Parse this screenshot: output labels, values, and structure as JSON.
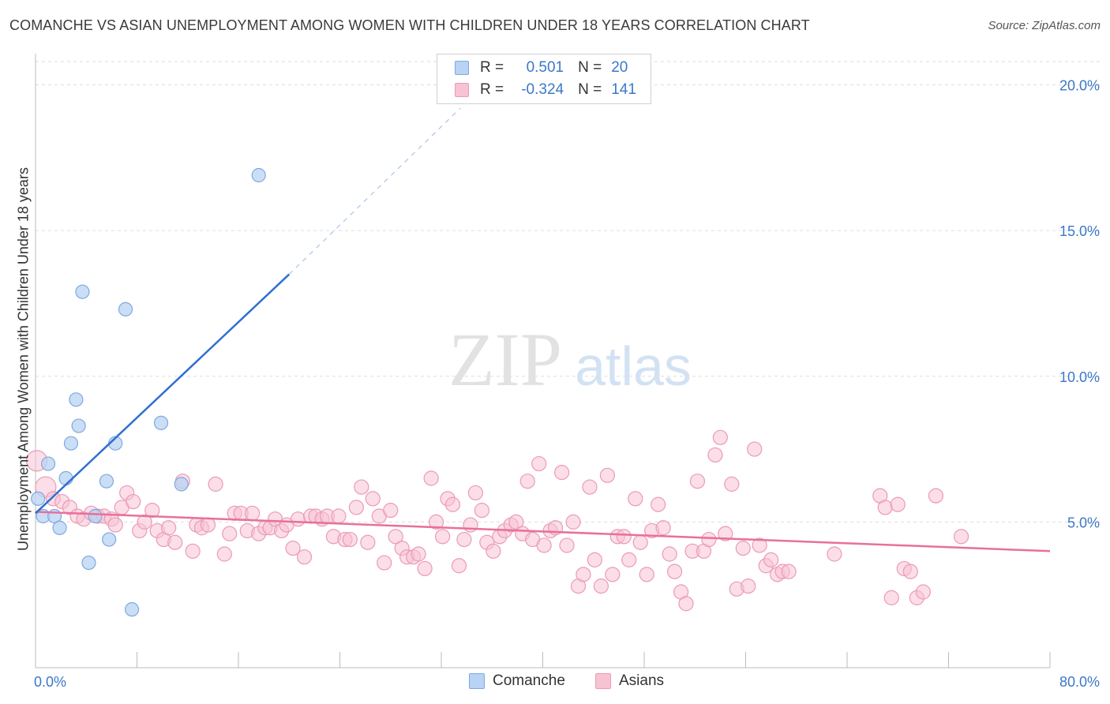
{
  "title": "COMANCHE VS ASIAN UNEMPLOYMENT AMONG WOMEN WITH CHILDREN UNDER 18 YEARS CORRELATION CHART",
  "source": "Source: ZipAtlas.com",
  "watermark": {
    "zip": "ZIP",
    "atlas": "atlas"
  },
  "legend": {
    "series1": {
      "r_label": "R =",
      "r_value": "0.501",
      "n_label": "N =",
      "n_value": "20"
    },
    "series2": {
      "r_label": "R =",
      "r_value": "-0.324",
      "n_label": "N =",
      "n_value": "141"
    }
  },
  "bottom_legend": {
    "series1": "Comanche",
    "series2": "Asians"
  },
  "colors": {
    "comanche_fill": "#b8d3f3",
    "comanche_stroke": "#7fa9e0",
    "comanche_line": "#2f6fd0",
    "asian_fill": "#f7c3d3",
    "asian_stroke": "#ec9ab5",
    "asian_line": "#e8709a",
    "tick_label": "#3b78c8",
    "grid": "#dddddd"
  },
  "chart_data": {
    "type": "scatter",
    "ylabel": "Unemployment Among Women with Children Under 18 years",
    "xlim": [
      0,
      80
    ],
    "ylim": [
      0,
      20.8
    ],
    "x_tick_labels": [
      "0.0%",
      "80.0%"
    ],
    "y_ticks": [
      5,
      10,
      15,
      20
    ],
    "y_tick_labels": [
      "5.0%",
      "10.0%",
      "15.0%",
      "20.0%"
    ],
    "grid": true,
    "series": [
      {
        "name": "Comanche",
        "points": [
          [
            0.2,
            5.8
          ],
          [
            0.6,
            5.2
          ],
          [
            1.0,
            7.0
          ],
          [
            1.5,
            5.2
          ],
          [
            1.9,
            4.8
          ],
          [
            2.4,
            6.5
          ],
          [
            2.8,
            7.7
          ],
          [
            3.2,
            9.2
          ],
          [
            3.4,
            8.3
          ],
          [
            3.7,
            12.9
          ],
          [
            4.2,
            3.6
          ],
          [
            4.7,
            5.2
          ],
          [
            5.6,
            6.4
          ],
          [
            5.8,
            4.4
          ],
          [
            6.3,
            7.7
          ],
          [
            7.1,
            12.3
          ],
          [
            7.6,
            2.0
          ],
          [
            9.9,
            8.4
          ],
          [
            11.5,
            6.3
          ],
          [
            17.6,
            16.9
          ]
        ],
        "trend": {
          "x1": 0,
          "y1": 5.3,
          "x2": 20.0,
          "y2": 13.5,
          "dash_to_x": 33.5,
          "dash_to_y": 19.2
        }
      },
      {
        "name": "Asians",
        "points": [
          [
            0.1,
            7.1
          ],
          [
            0.8,
            6.2
          ],
          [
            1.4,
            5.8
          ],
          [
            2.1,
            5.7
          ],
          [
            2.7,
            5.5
          ],
          [
            3.3,
            5.2
          ],
          [
            3.8,
            5.1
          ],
          [
            4.4,
            5.3
          ],
          [
            4.9,
            5.2
          ],
          [
            5.4,
            5.2
          ],
          [
            6.0,
            5.1
          ],
          [
            6.3,
            4.9
          ],
          [
            6.8,
            5.5
          ],
          [
            7.2,
            6.0
          ],
          [
            7.7,
            5.7
          ],
          [
            8.2,
            4.7
          ],
          [
            8.6,
            5.0
          ],
          [
            9.2,
            5.4
          ],
          [
            9.6,
            4.7
          ],
          [
            10.1,
            4.4
          ],
          [
            10.5,
            4.8
          ],
          [
            11.0,
            4.3
          ],
          [
            11.6,
            6.4
          ],
          [
            12.4,
            4.0
          ],
          [
            12.7,
            4.9
          ],
          [
            13.1,
            4.8
          ],
          [
            13.6,
            4.9
          ],
          [
            14.2,
            6.3
          ],
          [
            14.9,
            3.9
          ],
          [
            15.3,
            4.6
          ],
          [
            15.7,
            5.3
          ],
          [
            16.2,
            5.3
          ],
          [
            16.7,
            4.7
          ],
          [
            17.1,
            5.3
          ],
          [
            17.6,
            4.6
          ],
          [
            18.1,
            4.8
          ],
          [
            18.5,
            4.8
          ],
          [
            18.9,
            5.1
          ],
          [
            19.4,
            4.7
          ],
          [
            19.8,
            4.9
          ],
          [
            20.3,
            4.1
          ],
          [
            20.7,
            5.1
          ],
          [
            21.2,
            3.8
          ],
          [
            21.7,
            5.2
          ],
          [
            22.1,
            5.2
          ],
          [
            22.6,
            5.1
          ],
          [
            23.0,
            5.2
          ],
          [
            23.5,
            4.5
          ],
          [
            23.9,
            5.2
          ],
          [
            24.4,
            4.4
          ],
          [
            24.8,
            4.4
          ],
          [
            25.3,
            5.5
          ],
          [
            25.7,
            6.2
          ],
          [
            26.2,
            4.3
          ],
          [
            26.6,
            5.8
          ],
          [
            27.1,
            5.2
          ],
          [
            27.5,
            3.6
          ],
          [
            28.0,
            5.4
          ],
          [
            28.4,
            4.5
          ],
          [
            28.9,
            4.1
          ],
          [
            29.3,
            3.8
          ],
          [
            29.8,
            3.8
          ],
          [
            30.2,
            3.9
          ],
          [
            30.7,
            3.4
          ],
          [
            31.2,
            6.5
          ],
          [
            31.6,
            5.0
          ],
          [
            32.1,
            4.5
          ],
          [
            32.5,
            5.8
          ],
          [
            32.9,
            5.6
          ],
          [
            33.4,
            3.5
          ],
          [
            33.8,
            4.4
          ],
          [
            34.3,
            4.9
          ],
          [
            34.7,
            6.0
          ],
          [
            35.2,
            5.4
          ],
          [
            35.6,
            4.3
          ],
          [
            36.1,
            4.0
          ],
          [
            36.6,
            4.5
          ],
          [
            37.0,
            4.7
          ],
          [
            37.5,
            4.9
          ],
          [
            37.9,
            5.0
          ],
          [
            38.4,
            4.6
          ],
          [
            38.8,
            6.4
          ],
          [
            39.2,
            4.4
          ],
          [
            39.7,
            7.0
          ],
          [
            40.1,
            4.2
          ],
          [
            40.6,
            4.7
          ],
          [
            41.0,
            4.8
          ],
          [
            41.5,
            6.7
          ],
          [
            41.9,
            4.2
          ],
          [
            42.4,
            5.0
          ],
          [
            42.8,
            2.8
          ],
          [
            43.2,
            3.2
          ],
          [
            43.7,
            6.2
          ],
          [
            44.1,
            3.7
          ],
          [
            44.6,
            2.8
          ],
          [
            45.1,
            6.6
          ],
          [
            45.5,
            3.2
          ],
          [
            45.9,
            4.5
          ],
          [
            46.4,
            4.5
          ],
          [
            46.8,
            3.7
          ],
          [
            47.3,
            5.8
          ],
          [
            47.7,
            4.3
          ],
          [
            48.2,
            3.2
          ],
          [
            48.6,
            4.7
          ],
          [
            49.1,
            5.6
          ],
          [
            49.5,
            4.8
          ],
          [
            50.0,
            3.9
          ],
          [
            50.4,
            3.3
          ],
          [
            50.9,
            2.6
          ],
          [
            51.3,
            2.2
          ],
          [
            51.8,
            4.0
          ],
          [
            52.2,
            6.4
          ],
          [
            52.7,
            4.0
          ],
          [
            53.1,
            4.4
          ],
          [
            53.6,
            7.3
          ],
          [
            54.0,
            7.9
          ],
          [
            54.4,
            4.6
          ],
          [
            54.9,
            6.3
          ],
          [
            55.3,
            2.7
          ],
          [
            55.8,
            4.1
          ],
          [
            56.2,
            2.8
          ],
          [
            56.7,
            7.5
          ],
          [
            57.1,
            4.2
          ],
          [
            57.6,
            3.5
          ],
          [
            58.0,
            3.7
          ],
          [
            58.5,
            3.2
          ],
          [
            58.9,
            3.3
          ],
          [
            59.4,
            3.3
          ],
          [
            63.0,
            3.9
          ],
          [
            66.6,
            5.9
          ],
          [
            67.0,
            5.5
          ],
          [
            67.5,
            2.4
          ],
          [
            68.0,
            5.6
          ],
          [
            68.5,
            3.4
          ],
          [
            69.0,
            3.3
          ],
          [
            69.5,
            2.4
          ],
          [
            70.0,
            2.6
          ],
          [
            71.0,
            5.9
          ],
          [
            73.0,
            4.5
          ]
        ],
        "trend": {
          "x1": 0,
          "y1": 5.35,
          "x2": 80,
          "y2": 4.0
        }
      }
    ]
  }
}
